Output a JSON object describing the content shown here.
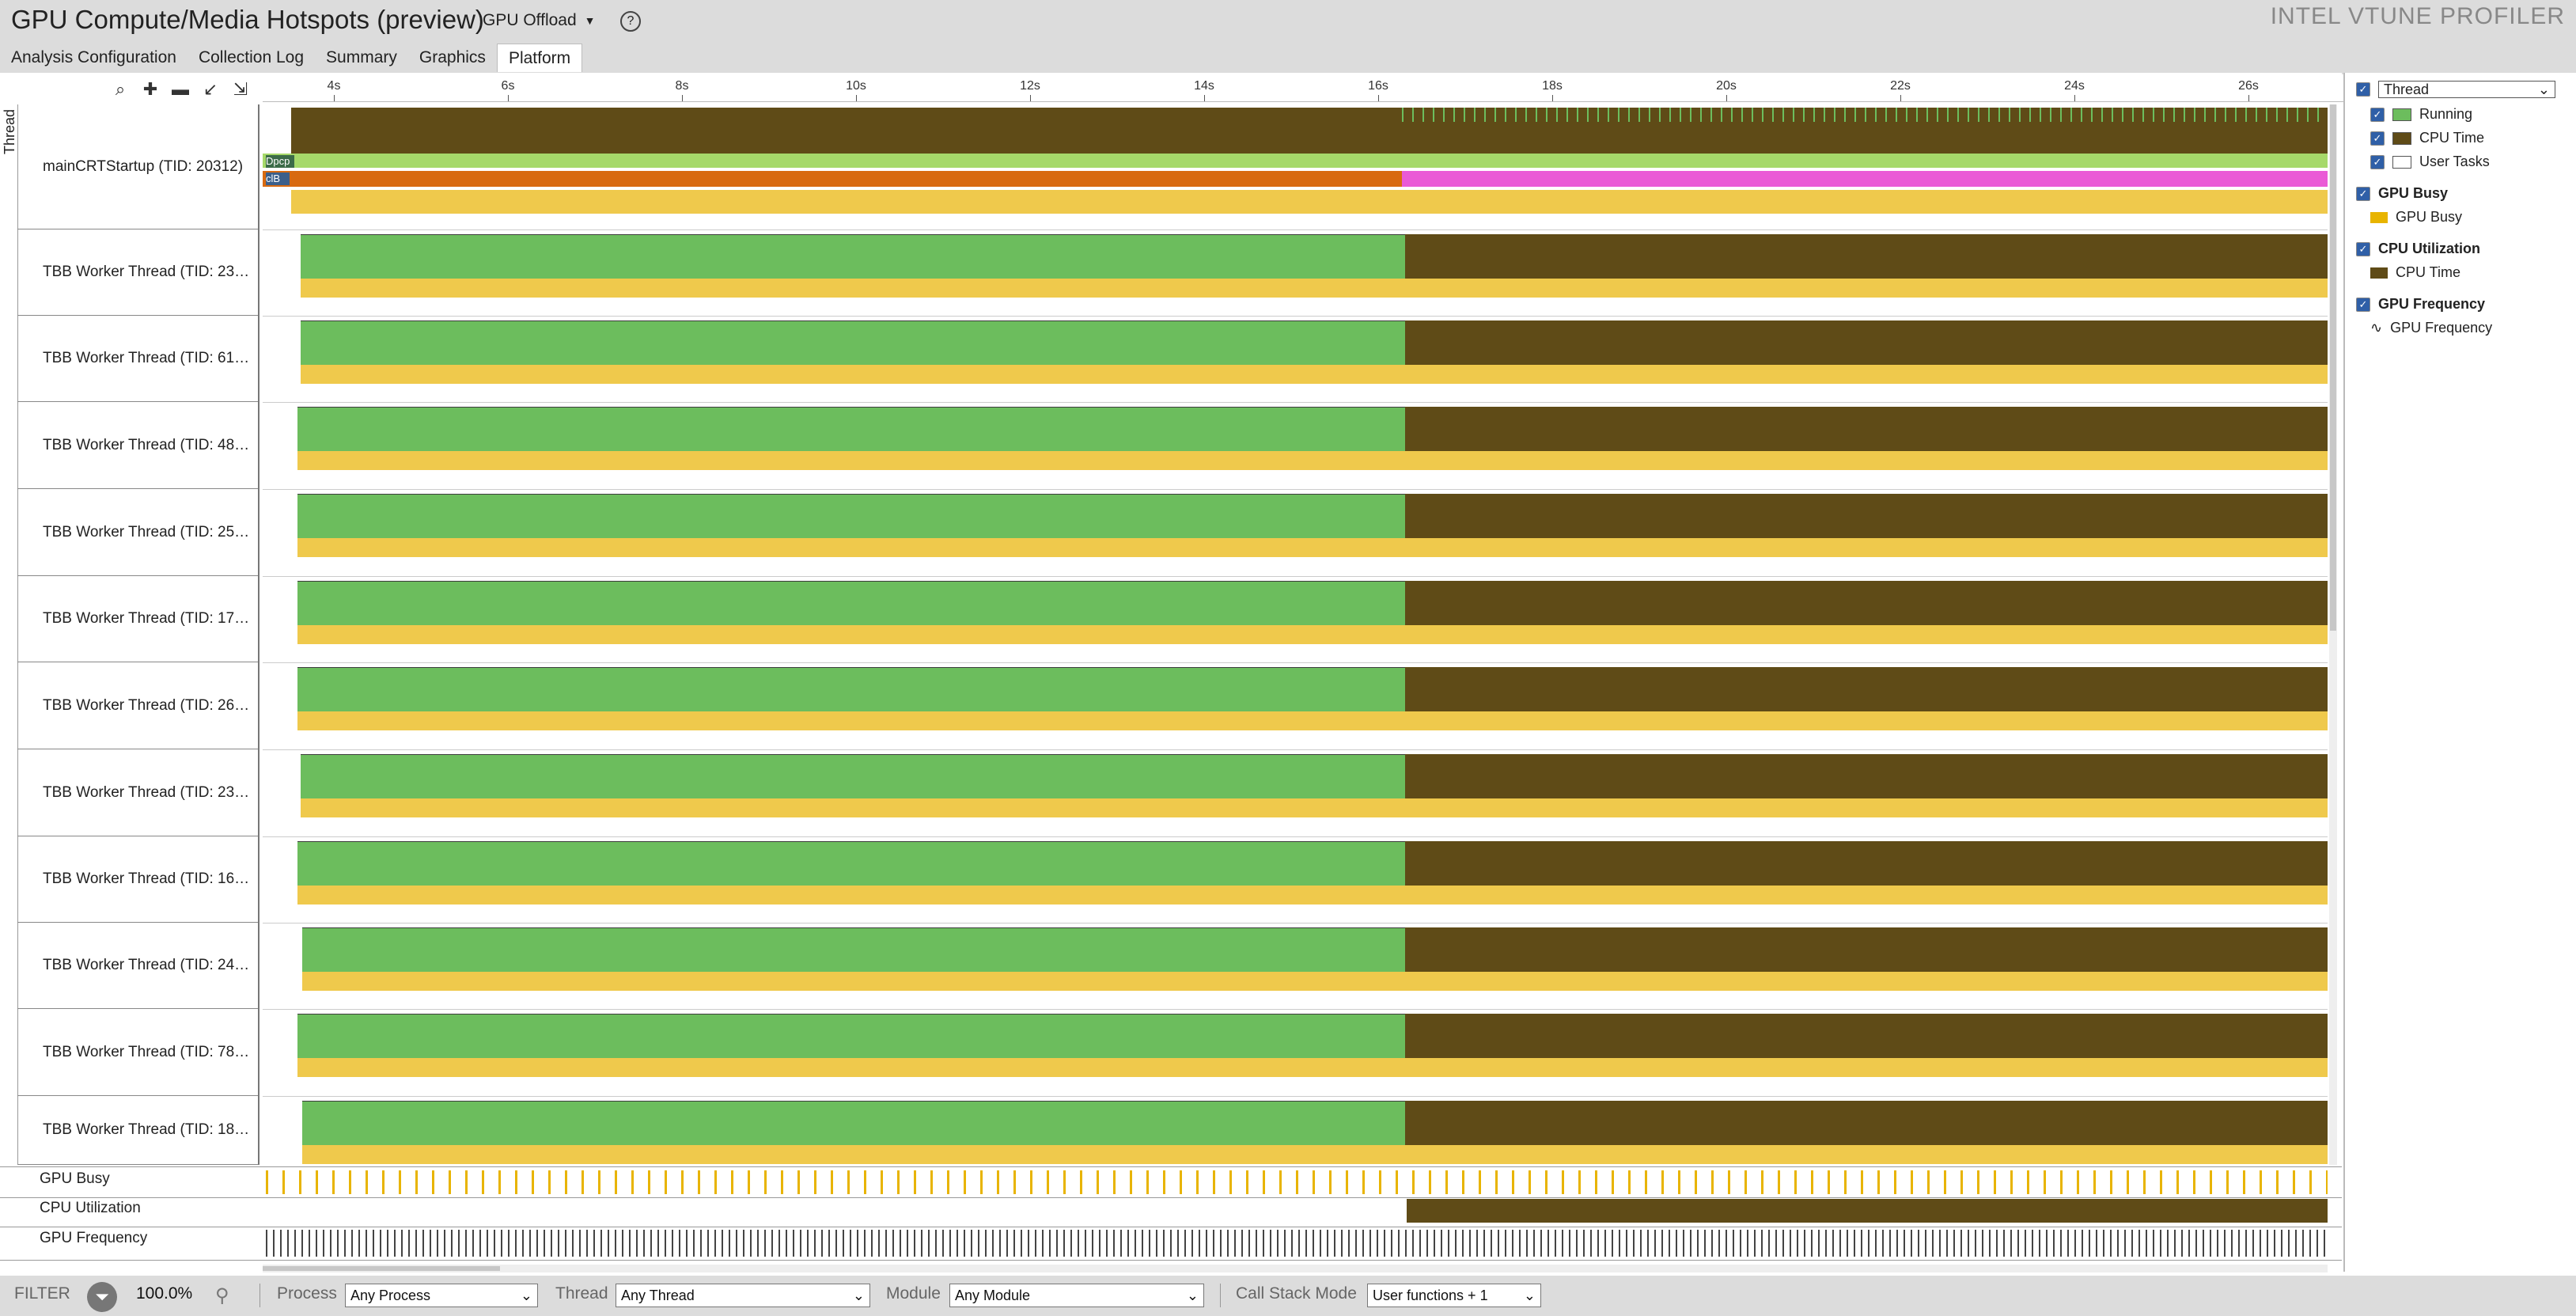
{
  "header": {
    "title": "GPU Compute/Media Hotspots (preview)",
    "analysis_type": "GPU Offload",
    "help_icon": "question-circle-icon",
    "brand": "INTEL VTUNE PROFILER"
  },
  "tabs": [
    "Analysis Configuration",
    "Collection Log",
    "Summary",
    "Graphics",
    "Platform"
  ],
  "active_tab": "Platform",
  "toolbar": {
    "icons": [
      "search-icon",
      "zoom-in-icon",
      "zoom-out-icon",
      "zoom-back-icon",
      "zoom-reset-icon"
    ]
  },
  "axis": {
    "ticks": [
      "4s",
      "6s",
      "8s",
      "10s",
      "12s",
      "14s",
      "16s",
      "18s",
      "20s",
      "22s",
      "24s",
      "26s"
    ]
  },
  "timeline": {
    "group_label": "Thread",
    "rows": [
      "mainCRTStartup (TID: 20312)",
      "TBB Worker Thread (TID: 23…",
      "TBB Worker Thread (TID: 61…",
      "TBB Worker Thread (TID: 48…",
      "TBB Worker Thread (TID: 25…",
      "TBB Worker Thread (TID: 17…",
      "TBB Worker Thread (TID: 26…",
      "TBB Worker Thread (TID: 23…",
      "TBB Worker Thread (TID: 16…",
      "TBB Worker Thread (TID: 24…",
      "TBB Worker Thread (TID: 78…",
      "TBB Worker Thread (TID: 18…"
    ],
    "main_badges": [
      "Dpcp",
      "clB"
    ],
    "bottom_tracks": [
      "GPU Busy",
      "CPU Utilization",
      "GPU Frequency"
    ]
  },
  "legend": {
    "dropdown": "Thread",
    "sections": [
      {
        "title": "",
        "items": [
          "Running",
          "CPU Time",
          "User Tasks"
        ]
      },
      {
        "title": "GPU Busy",
        "items": [
          "GPU Busy"
        ]
      },
      {
        "title": "CPU Utilization",
        "items": [
          "CPU Time"
        ]
      },
      {
        "title": "GPU Frequency",
        "items": [
          "GPU Frequency"
        ]
      }
    ]
  },
  "filter_bar": {
    "filter_label": "FILTER",
    "percent": "100.0%",
    "process_label": "Process",
    "process_value": "Any Process",
    "thread_label": "Thread",
    "thread_value": "Any Thread",
    "module_label": "Module",
    "module_value": "Any Module",
    "callstack_label": "Call Stack Mode",
    "callstack_value": "User functions + 1"
  },
  "colors": {
    "running": "#6cbd5d",
    "cpu_time": "#5f4b17",
    "gpu_busy": "#e8b400",
    "user_tasks_band": "#efc94c",
    "header_bg": "#dcdcdc"
  }
}
